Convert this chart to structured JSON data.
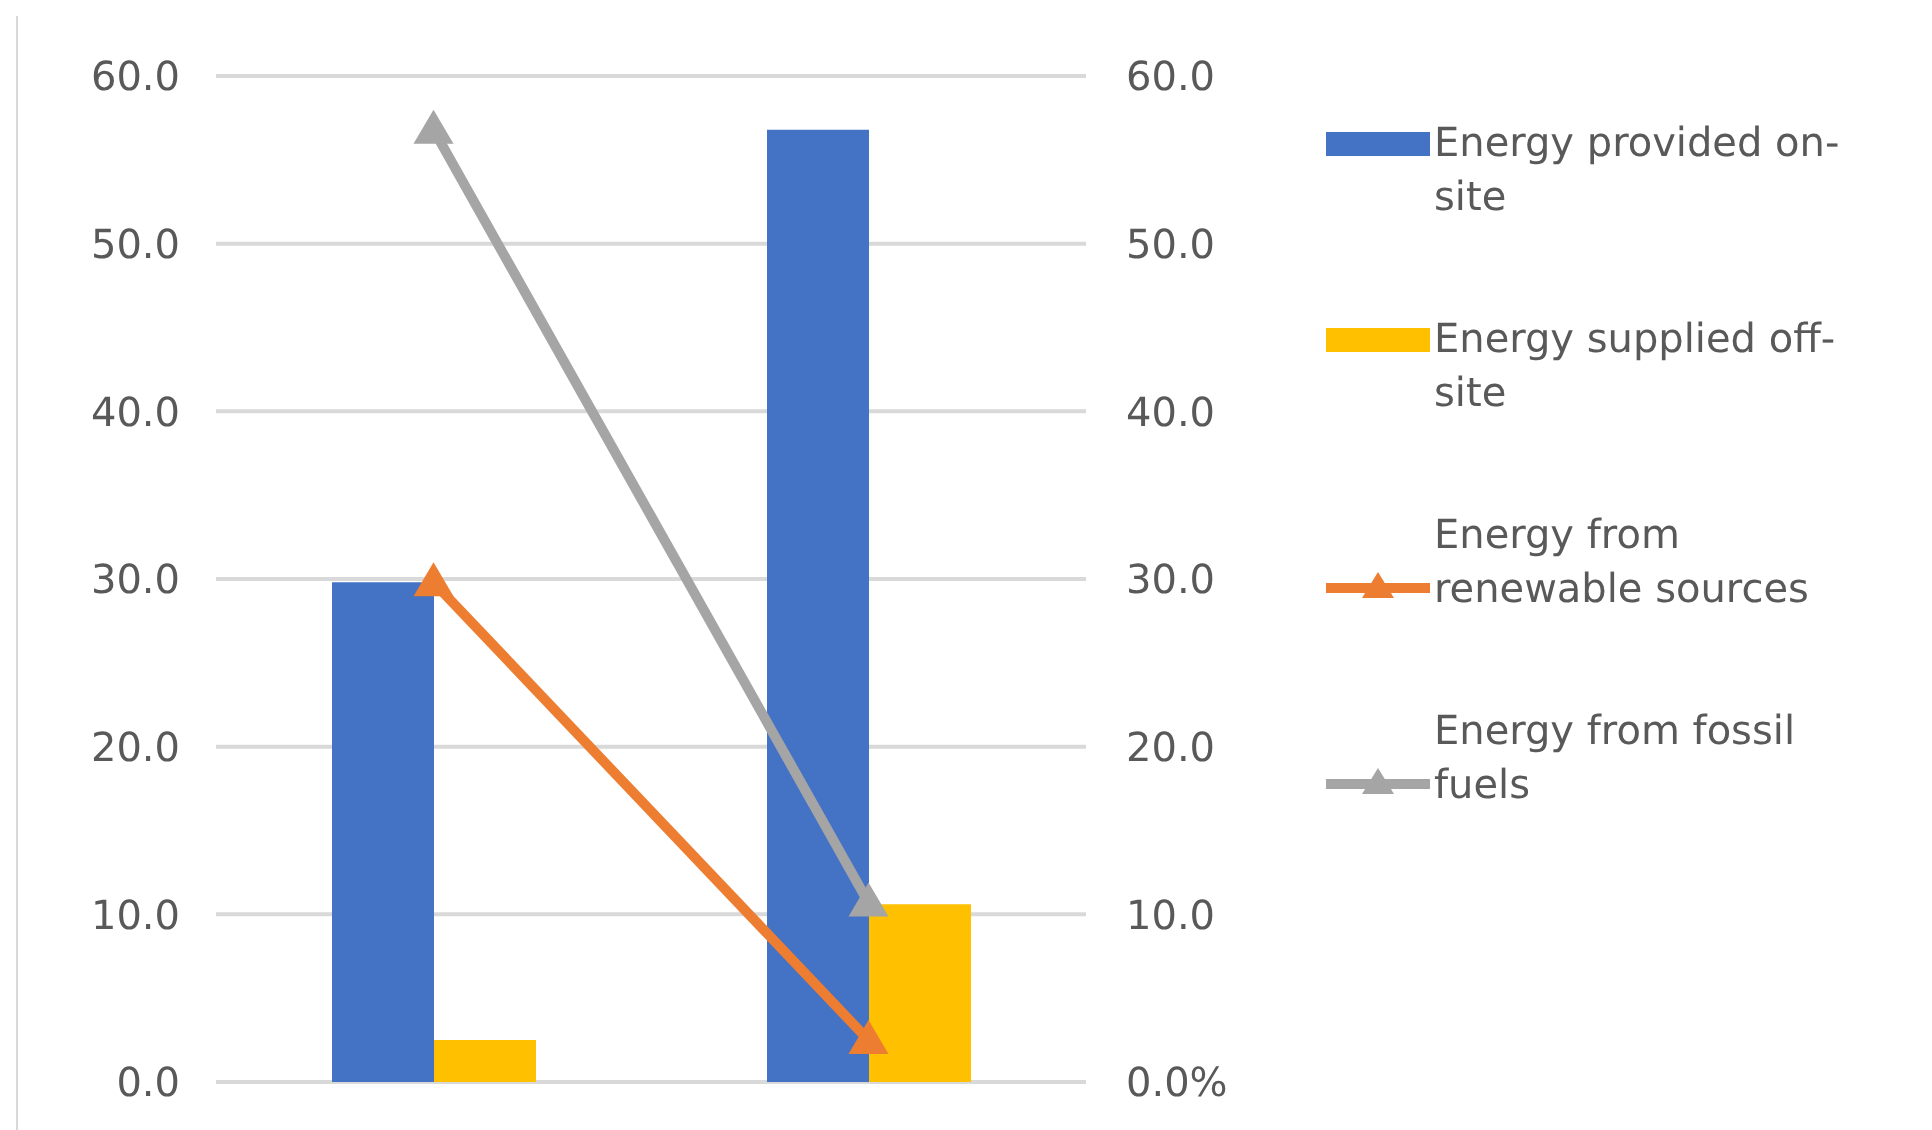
{
  "chart_data": {
    "type": "bar",
    "categories": [
      null,
      null
    ],
    "series": [
      {
        "name": "Energy provided on-site",
        "color": "#4472c4",
        "values": [
          29.8,
          56.8
        ]
      },
      {
        "name": "Energy supplied off-site",
        "color": "#ffc000",
        "values": [
          2.5,
          10.6
        ]
      },
      {
        "name": "Energy from renewable sources",
        "type": "line",
        "axis": "y2",
        "color": "#ed7d31",
        "values": [
          29.8,
          2.5
        ]
      },
      {
        "name": "Energy from fossil fuels",
        "type": "line",
        "axis": "y2",
        "color": "#a5a5a5",
        "values": [
          56.8,
          10.7
        ]
      }
    ],
    "ylim": [
      0,
      60
    ],
    "yticks": [
      {
        "value": 0,
        "label": "0.0"
      },
      {
        "value": 10,
        "label": "10.0"
      },
      {
        "value": 20,
        "label": "20.0"
      },
      {
        "value": 30,
        "label": "30.0"
      },
      {
        "value": 40,
        "label": "40.0"
      },
      {
        "value": 50,
        "label": "50.0"
      },
      {
        "value": 60,
        "label": "60.0"
      }
    ],
    "y2lim": [
      0,
      60
    ],
    "y2ticks": [
      {
        "value": 0,
        "label": "0.0%"
      },
      {
        "value": 10,
        "label": "10.0"
      },
      {
        "value": 20,
        "label": "20.0"
      },
      {
        "value": 30,
        "label": "30.0"
      },
      {
        "value": 40,
        "label": "40.0"
      },
      {
        "value": 50,
        "label": "50.0"
      },
      {
        "value": 60,
        "label": "60.0"
      }
    ],
    "grid": "y",
    "legend": "right",
    "marker": "triangle",
    "line_style": "solid"
  }
}
